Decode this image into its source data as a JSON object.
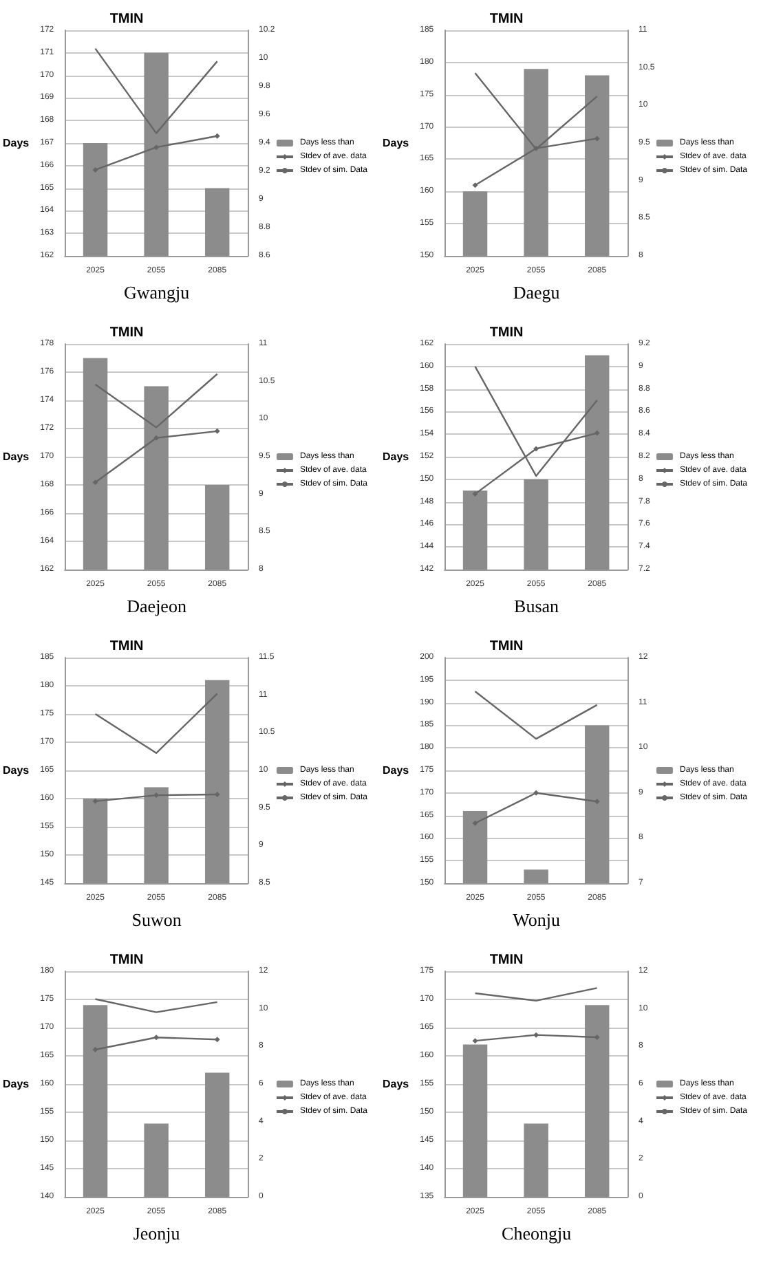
{
  "chart_data": [
    {
      "type": "bar",
      "title": "TMIN",
      "ylabel": "Days",
      "annotations": [
        "Gwangju"
      ],
      "categories": [
        "2025",
        "2055",
        "2085"
      ],
      "ylim": [
        162,
        172
      ],
      "yticks": [
        162,
        163,
        164,
        165,
        166,
        167,
        168,
        169,
        170,
        171,
        172
      ],
      "y2lim": [
        8.6,
        10.2
      ],
      "y2ticks": [
        8.6,
        8.8,
        9,
        9.2,
        9.4,
        9.6,
        9.8,
        10,
        10.2
      ],
      "grid": "y",
      "legend": "right",
      "series": [
        {
          "name": "Days less than",
          "color": "#8c8c8c",
          "values": [
            167,
            171,
            165
          ]
        },
        {
          "name": "Stdev of ave. data",
          "type": "line",
          "axis": "y2",
          "color": "#666666",
          "marker": "diamond",
          "values": [
            9.21,
            9.37,
            9.45
          ]
        },
        {
          "name": "Stdev of sim. Data",
          "type": "line",
          "axis": "y2",
          "color": "#666666",
          "values": [
            10.07,
            9.47,
            9.98
          ]
        }
      ]
    },
    {
      "type": "bar",
      "title": "TMIN",
      "ylabel": "Days",
      "annotations": [
        "Daegu"
      ],
      "categories": [
        "2025",
        "2055",
        "2085"
      ],
      "ylim": [
        150,
        185
      ],
      "yticks": [
        150,
        155,
        160,
        165,
        170,
        175,
        180,
        185
      ],
      "y2lim": [
        8,
        11
      ],
      "y2ticks": [
        8,
        8.5,
        9,
        9.5,
        10,
        10.5,
        11
      ],
      "grid": "y",
      "legend": "right",
      "series": [
        {
          "name": "Days less than",
          "color": "#8c8c8c",
          "values": [
            160,
            179,
            178
          ]
        },
        {
          "name": "Stdev of ave. data",
          "type": "line",
          "axis": "y2",
          "color": "#666666",
          "marker": "diamond",
          "values": [
            8.94,
            9.43,
            9.56
          ]
        },
        {
          "name": "Stdev of sim. Data",
          "type": "line",
          "axis": "y2",
          "color": "#666666",
          "values": [
            10.43,
            9.42,
            10.12
          ]
        }
      ]
    },
    {
      "type": "bar",
      "title": "TMIN",
      "ylabel": "Days",
      "annotations": [
        "Daejeon"
      ],
      "categories": [
        "2025",
        "2055",
        "2085"
      ],
      "ylim": [
        162,
        178
      ],
      "yticks": [
        162,
        164,
        166,
        168,
        170,
        172,
        174,
        176,
        178
      ],
      "y2lim": [
        8,
        11
      ],
      "y2ticks": [
        8,
        8.5,
        9,
        9.5,
        10,
        10.5,
        11
      ],
      "grid": "y",
      "legend": "right",
      "series": [
        {
          "name": "Days less than",
          "color": "#8c8c8c",
          "values": [
            177,
            175,
            168
          ]
        },
        {
          "name": "Stdev of ave. data",
          "type": "line",
          "axis": "y2",
          "color": "#666666",
          "marker": "diamond",
          "values": [
            9.16,
            9.75,
            9.84
          ]
        },
        {
          "name": "Stdev of sim. Data",
          "type": "line",
          "axis": "y2",
          "color": "#666666",
          "values": [
            10.46,
            9.89,
            10.6
          ]
        }
      ]
    },
    {
      "type": "bar",
      "title": "TMIN",
      "ylabel": "Days",
      "annotations": [
        "Busan"
      ],
      "categories": [
        "2025",
        "2055",
        "2085"
      ],
      "ylim": [
        142,
        162
      ],
      "yticks": [
        142,
        144,
        146,
        148,
        150,
        152,
        154,
        156,
        158,
        160,
        162
      ],
      "y2lim": [
        7.2,
        9.2
      ],
      "y2ticks": [
        7.2,
        7.4,
        7.6,
        7.8,
        8,
        8.2,
        8.4,
        8.6,
        8.8,
        9,
        9.2
      ],
      "grid": "y",
      "legend": "right",
      "series": [
        {
          "name": "Days less than",
          "color": "#8c8c8c",
          "values": [
            149,
            150,
            161
          ]
        },
        {
          "name": "Stdev of ave. data",
          "type": "line",
          "axis": "y2",
          "color": "#666666",
          "marker": "diamond",
          "values": [
            7.87,
            8.27,
            8.41
          ]
        },
        {
          "name": "Stdev of sim. Data",
          "type": "line",
          "axis": "y2",
          "color": "#666666",
          "values": [
            9.0,
            8.03,
            8.7
          ]
        }
      ]
    },
    {
      "type": "bar",
      "title": "TMIN",
      "ylabel": "Days",
      "annotations": [
        "Suwon"
      ],
      "categories": [
        "2025",
        "2055",
        "2085"
      ],
      "ylim": [
        145,
        185
      ],
      "yticks": [
        145,
        150,
        155,
        160,
        165,
        170,
        175,
        180,
        185
      ],
      "y2lim": [
        8.5,
        11.5
      ],
      "y2ticks": [
        8.5,
        9,
        9.5,
        10,
        10.5,
        11,
        11.5
      ],
      "grid": "y",
      "legend": "right",
      "series": [
        {
          "name": "Days less than",
          "color": "#8c8c8c",
          "values": [
            160,
            162,
            181
          ]
        },
        {
          "name": "Stdev of ave. data",
          "type": "line",
          "axis": "y2",
          "color": "#666666",
          "marker": "diamond",
          "values": [
            9.59,
            9.67,
            9.68
          ]
        },
        {
          "name": "Stdev of sim. Data",
          "type": "line",
          "axis": "y2",
          "color": "#666666",
          "values": [
            10.75,
            10.23,
            11.02
          ]
        }
      ]
    },
    {
      "type": "bar",
      "title": "TMIN",
      "ylabel": "Days",
      "annotations": [
        "Wonju"
      ],
      "categories": [
        "2025",
        "2055",
        "2085"
      ],
      "ylim": [
        150,
        200
      ],
      "yticks": [
        150,
        155,
        160,
        165,
        170,
        175,
        180,
        185,
        190,
        195,
        200
      ],
      "y2lim": [
        7,
        12
      ],
      "y2ticks": [
        7,
        8,
        9,
        10,
        11,
        12
      ],
      "grid": "y",
      "legend": "right",
      "series": [
        {
          "name": "Days less than",
          "color": "#8c8c8c",
          "values": [
            166,
            153,
            185
          ]
        },
        {
          "name": "Stdev of ave. data",
          "type": "line",
          "axis": "y2",
          "color": "#666666",
          "marker": "diamond",
          "values": [
            8.33,
            9.0,
            8.81
          ]
        },
        {
          "name": "Stdev of sim. Data",
          "type": "line",
          "axis": "y2",
          "color": "#666666",
          "values": [
            11.25,
            10.2,
            10.95
          ]
        }
      ]
    },
    {
      "type": "bar",
      "title": "TMIN",
      "ylabel": "Days",
      "annotations": [
        "Jeonju"
      ],
      "categories": [
        "2025",
        "2055",
        "2085"
      ],
      "ylim": [
        140,
        180
      ],
      "yticks": [
        140,
        145,
        150,
        155,
        160,
        165,
        170,
        175,
        180
      ],
      "y2lim": [
        0,
        12
      ],
      "y2ticks": [
        0,
        2,
        4,
        6,
        8,
        10,
        12
      ],
      "grid": "y",
      "legend": "right",
      "series": [
        {
          "name": "Days less than",
          "color": "#8c8c8c",
          "values": [
            174,
            153,
            162
          ]
        },
        {
          "name": "Stdev of ave. data",
          "type": "line",
          "axis": "y2",
          "color": "#666666",
          "marker": "diamond",
          "values": [
            7.83,
            8.48,
            8.37
          ]
        },
        {
          "name": "Stdev of sim. Data",
          "type": "line",
          "axis": "y2",
          "color": "#666666",
          "values": [
            10.52,
            9.82,
            10.36
          ]
        }
      ]
    },
    {
      "type": "bar",
      "title": "TMIN",
      "ylabel": "Days",
      "annotations": [
        "Cheongju"
      ],
      "categories": [
        "2025",
        "2055",
        "2085"
      ],
      "ylim": [
        135,
        175
      ],
      "yticks": [
        135,
        140,
        145,
        150,
        155,
        160,
        165,
        170,
        175
      ],
      "y2lim": [
        0,
        12
      ],
      "y2ticks": [
        0,
        2,
        4,
        6,
        8,
        10,
        12
      ],
      "grid": "y",
      "legend": "right",
      "series": [
        {
          "name": "Days less than",
          "color": "#8c8c8c",
          "values": [
            162,
            148,
            169
          ]
        },
        {
          "name": "Stdev of ave. data",
          "type": "line",
          "axis": "y2",
          "color": "#666666",
          "marker": "diamond",
          "values": [
            8.3,
            8.61,
            8.49
          ]
        },
        {
          "name": "Stdev of sim. Data",
          "type": "line",
          "axis": "y2",
          "color": "#666666",
          "values": [
            10.83,
            10.43,
            11.11
          ]
        }
      ]
    }
  ]
}
